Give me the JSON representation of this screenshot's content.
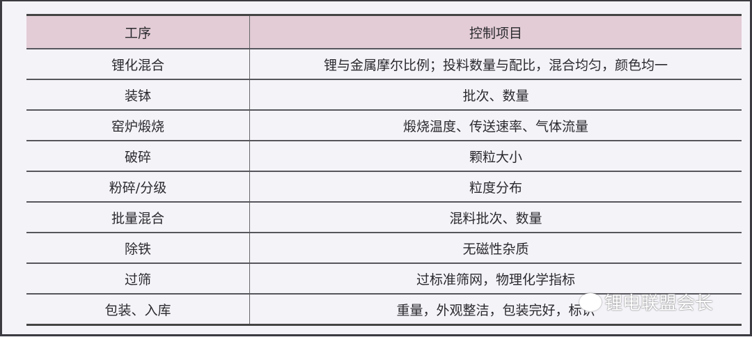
{
  "table": {
    "headers": [
      "工序",
      "控制项目"
    ],
    "rows": [
      [
        "锂化混合",
        "锂与金属摩尔比例；投料数量与配比，混合均匀，颜色均一"
      ],
      [
        "装钵",
        "批次、数量"
      ],
      [
        "窑炉煅烧",
        "煅烧温度、传送速率、气体流量"
      ],
      [
        "破碎",
        "颗粒大小"
      ],
      [
        "粉碎/分级",
        "粒度分布"
      ],
      [
        "批量混合",
        "混料批次、数量"
      ],
      [
        "除铁",
        "无磁性杂质"
      ],
      [
        "过筛",
        "过标准筛网，物理化学指标"
      ],
      [
        "包装、入库",
        "重量，外观整洁，包装完好，标识"
      ]
    ]
  },
  "watermark": {
    "text": "锂电联盟会长",
    "icon": "wechat-icon"
  }
}
